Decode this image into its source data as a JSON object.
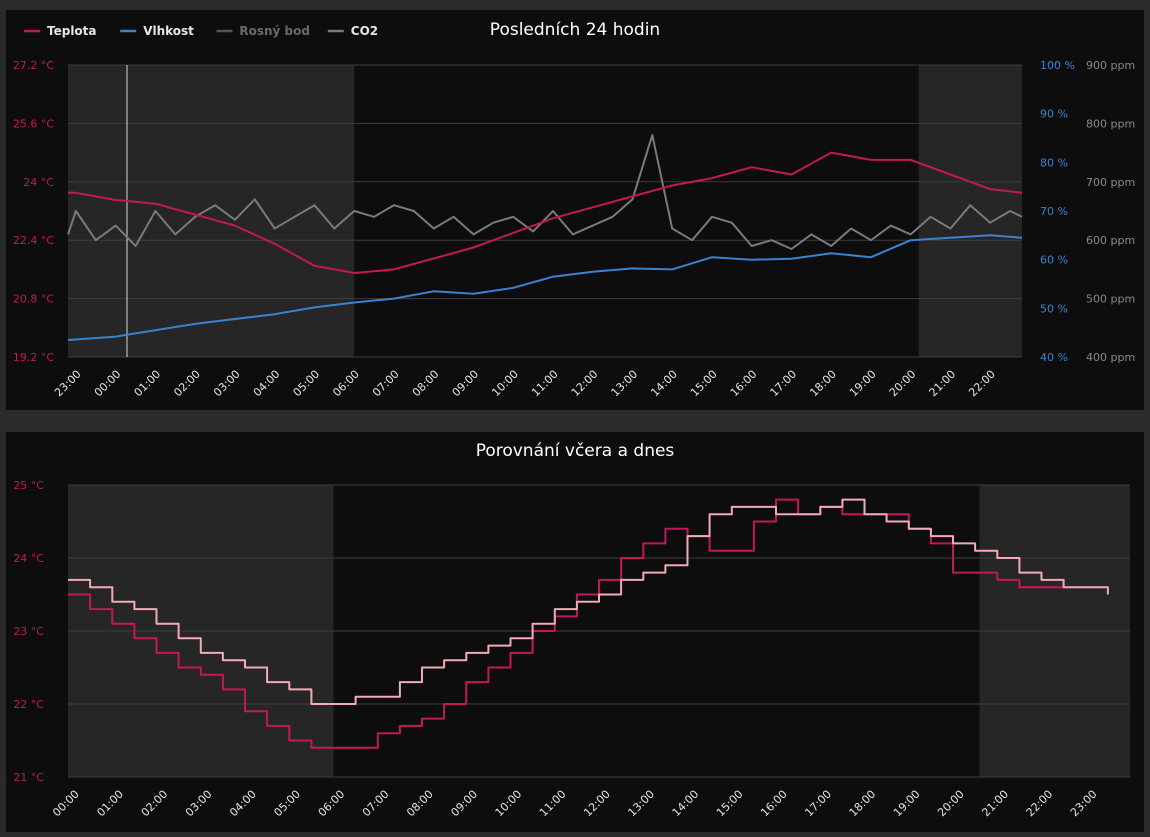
{
  "chart_data": [
    {
      "type": "line",
      "title": "Posledních 24 hodin",
      "legend_position": "top-left",
      "x_tick_labels": [
        "23:00",
        "00:00",
        "01:00",
        "02:00",
        "03:00",
        "04:00",
        "05:00",
        "06:00",
        "07:00",
        "08:00",
        "09:00",
        "10:00",
        "11:00",
        "12:00",
        "13:00",
        "14:00",
        "15:00",
        "16:00",
        "17:00",
        "18:00",
        "19:00",
        "20:00",
        "21:00",
        "22:00"
      ],
      "axes": {
        "temperature": {
          "ticks": [
            "19.2 °C",
            "20.8 °C",
            "22.4 °C",
            "24 °C",
            "25.6 °C",
            "27.2 °C"
          ],
          "ylim": [
            19.2,
            27.2
          ]
        },
        "humidity": {
          "ticks": [
            "40 %",
            "50 %",
            "60 %",
            "70 %",
            "80 %",
            "90 %",
            "100 %"
          ],
          "ylim": [
            40,
            100
          ]
        },
        "co2": {
          "ticks": [
            "400 ppm",
            "500 ppm",
            "600 ppm",
            "700 ppm",
            "800 ppm",
            "900 ppm"
          ],
          "ylim": [
            400,
            900
          ]
        }
      },
      "series": [
        {
          "name": "Teplota",
          "axis": "temperature",
          "color": "#c2185b",
          "visible": true,
          "hours": [
            22.8,
            23.0,
            24.0,
            25.0,
            26.0,
            27.0,
            28.0,
            29.0,
            30.0,
            31.0,
            32.0,
            33.0,
            34.0,
            35.0,
            36.0,
            37.0,
            38.0,
            39.0,
            40.0,
            41.0,
            42.0,
            43.0,
            44.0,
            45.0,
            46.0,
            46.8
          ],
          "values": [
            23.7,
            23.7,
            23.5,
            23.4,
            23.1,
            22.8,
            22.3,
            21.7,
            21.5,
            21.6,
            21.9,
            22.2,
            22.6,
            23.0,
            23.3,
            23.6,
            23.9,
            24.1,
            24.4,
            24.2,
            24.8,
            24.6,
            24.6,
            24.2,
            23.8,
            23.7
          ]
        },
        {
          "name": "Vlhkost",
          "axis": "humidity",
          "color": "#3a83d1",
          "visible": true,
          "hours": [
            22.8,
            23.0,
            24.0,
            25.0,
            26.0,
            27.0,
            28.0,
            29.0,
            30.0,
            31.0,
            32.0,
            33.0,
            34.0,
            35.0,
            36.0,
            37.0,
            38.0,
            39.0,
            40.0,
            41.0,
            42.0,
            43.0,
            44.0,
            45.0,
            46.0,
            46.8
          ],
          "values": [
            43.5,
            43.6,
            44.2,
            45.5,
            46.8,
            47.8,
            48.8,
            50.2,
            51.2,
            52.0,
            53.5,
            53.0,
            54.2,
            56.5,
            57.5,
            58.2,
            58.0,
            60.5,
            60.0,
            60.2,
            61.3,
            60.5,
            64.0,
            64.5,
            65.0,
            64.5
          ]
        },
        {
          "name": "Rosný bod",
          "axis": "temperature",
          "color": "#666666",
          "visible": false,
          "values": []
        },
        {
          "name": "CO2",
          "axis": "co2",
          "color": "#7a7a7a",
          "visible": true,
          "hours": [
            22.8,
            23.0,
            23.5,
            24.0,
            24.5,
            25.0,
            25.5,
            26.0,
            26.5,
            27.0,
            27.5,
            28.0,
            28.5,
            29.0,
            29.5,
            30.0,
            30.5,
            31.0,
            31.5,
            32.0,
            32.5,
            33.0,
            33.5,
            34.0,
            34.5,
            35.0,
            35.5,
            36.0,
            36.5,
            37.0,
            37.5,
            38.0,
            38.5,
            39.0,
            39.5,
            40.0,
            40.5,
            41.0,
            41.5,
            42.0,
            42.5,
            43.0,
            43.5,
            44.0,
            44.5,
            45.0,
            45.5,
            46.0,
            46.5,
            46.8
          ],
          "values": [
            610,
            650,
            600,
            625,
            590,
            650,
            610,
            640,
            660,
            635,
            670,
            620,
            640,
            660,
            620,
            650,
            640,
            660,
            650,
            620,
            640,
            610,
            630,
            640,
            615,
            650,
            610,
            625,
            640,
            670,
            780,
            620,
            600,
            640,
            630,
            590,
            600,
            585,
            610,
            590,
            620,
            600,
            625,
            610,
            640,
            620,
            660,
            630,
            650,
            640
          ]
        }
      ]
    },
    {
      "type": "line",
      "title": "Porovnání včera a dnes",
      "x_tick_labels": [
        "00:00",
        "01:00",
        "02:00",
        "03:00",
        "04:00",
        "05:00",
        "06:00",
        "07:00",
        "08:00",
        "09:00",
        "10:00",
        "11:00",
        "12:00",
        "13:00",
        "14:00",
        "15:00",
        "16:00",
        "17:00",
        "18:00",
        "19:00",
        "20:00",
        "21:00",
        "22:00",
        "23:00"
      ],
      "y_tick_labels": [
        "21 °C",
        "22 °C",
        "23 °C",
        "24 °C",
        "25 °C"
      ],
      "ylim": [
        21,
        25
      ],
      "series": [
        {
          "name": "",
          "color": "#c2185b",
          "x": [
            0.0,
            0.5,
            1.0,
            1.5,
            2.0,
            2.5,
            3.0,
            3.5,
            4.0,
            4.5,
            5.0,
            5.5,
            6.0,
            6.5,
            7.0,
            7.5,
            8.0,
            8.5,
            9.0,
            9.5,
            10.0,
            10.5,
            11.0,
            11.5,
            12.0,
            12.5,
            13.0,
            13.5,
            14.0,
            14.5,
            15.0,
            15.5,
            16.0,
            16.5,
            17.0,
            17.5,
            18.0,
            18.5,
            19.0,
            19.5,
            20.0,
            20.5,
            21.0,
            21.5,
            22.0,
            22.5
          ],
          "y": [
            23.5,
            23.3,
            23.1,
            22.9,
            22.7,
            22.5,
            22.4,
            22.2,
            21.9,
            21.7,
            21.5,
            21.4,
            21.4,
            21.4,
            21.6,
            21.7,
            21.8,
            22.0,
            22.3,
            22.5,
            22.7,
            23.0,
            23.2,
            23.5,
            23.7,
            24.0,
            24.2,
            24.4,
            24.3,
            24.1,
            24.1,
            24.5,
            24.8,
            24.6,
            24.7,
            24.6,
            24.6,
            24.6,
            24.4,
            24.2,
            23.8,
            23.8,
            23.7,
            23.6,
            23.6,
            23.7
          ]
        },
        {
          "name": "",
          "color": "#f2aab5",
          "x": [
            0.0,
            0.5,
            1.0,
            1.5,
            2.0,
            2.5,
            3.0,
            3.5,
            4.0,
            4.5,
            5.0,
            5.5,
            6.0,
            6.5,
            7.0,
            7.5,
            8.0,
            8.5,
            9.0,
            9.5,
            10.0,
            10.5,
            11.0,
            11.5,
            12.0,
            12.5,
            13.0,
            13.5,
            14.0,
            14.5,
            15.0,
            15.5,
            16.0,
            16.5,
            17.0,
            17.5,
            18.0,
            18.5,
            19.0,
            19.5,
            20.0,
            20.5,
            21.0,
            21.5,
            22.0,
            22.5,
            23.0,
            23.5
          ],
          "y": [
            23.7,
            23.6,
            23.4,
            23.3,
            23.1,
            22.9,
            22.7,
            22.6,
            22.5,
            22.3,
            22.2,
            22.0,
            22.0,
            22.1,
            22.1,
            22.3,
            22.5,
            22.6,
            22.7,
            22.8,
            22.9,
            23.1,
            23.3,
            23.4,
            23.5,
            23.7,
            23.8,
            23.9,
            24.3,
            24.6,
            24.7,
            24.7,
            24.6,
            24.6,
            24.7,
            24.8,
            24.6,
            24.5,
            24.4,
            24.3,
            24.2,
            24.1,
            24.0,
            23.8,
            23.7,
            23.6,
            23.6,
            23.5
          ]
        }
      ]
    }
  ]
}
